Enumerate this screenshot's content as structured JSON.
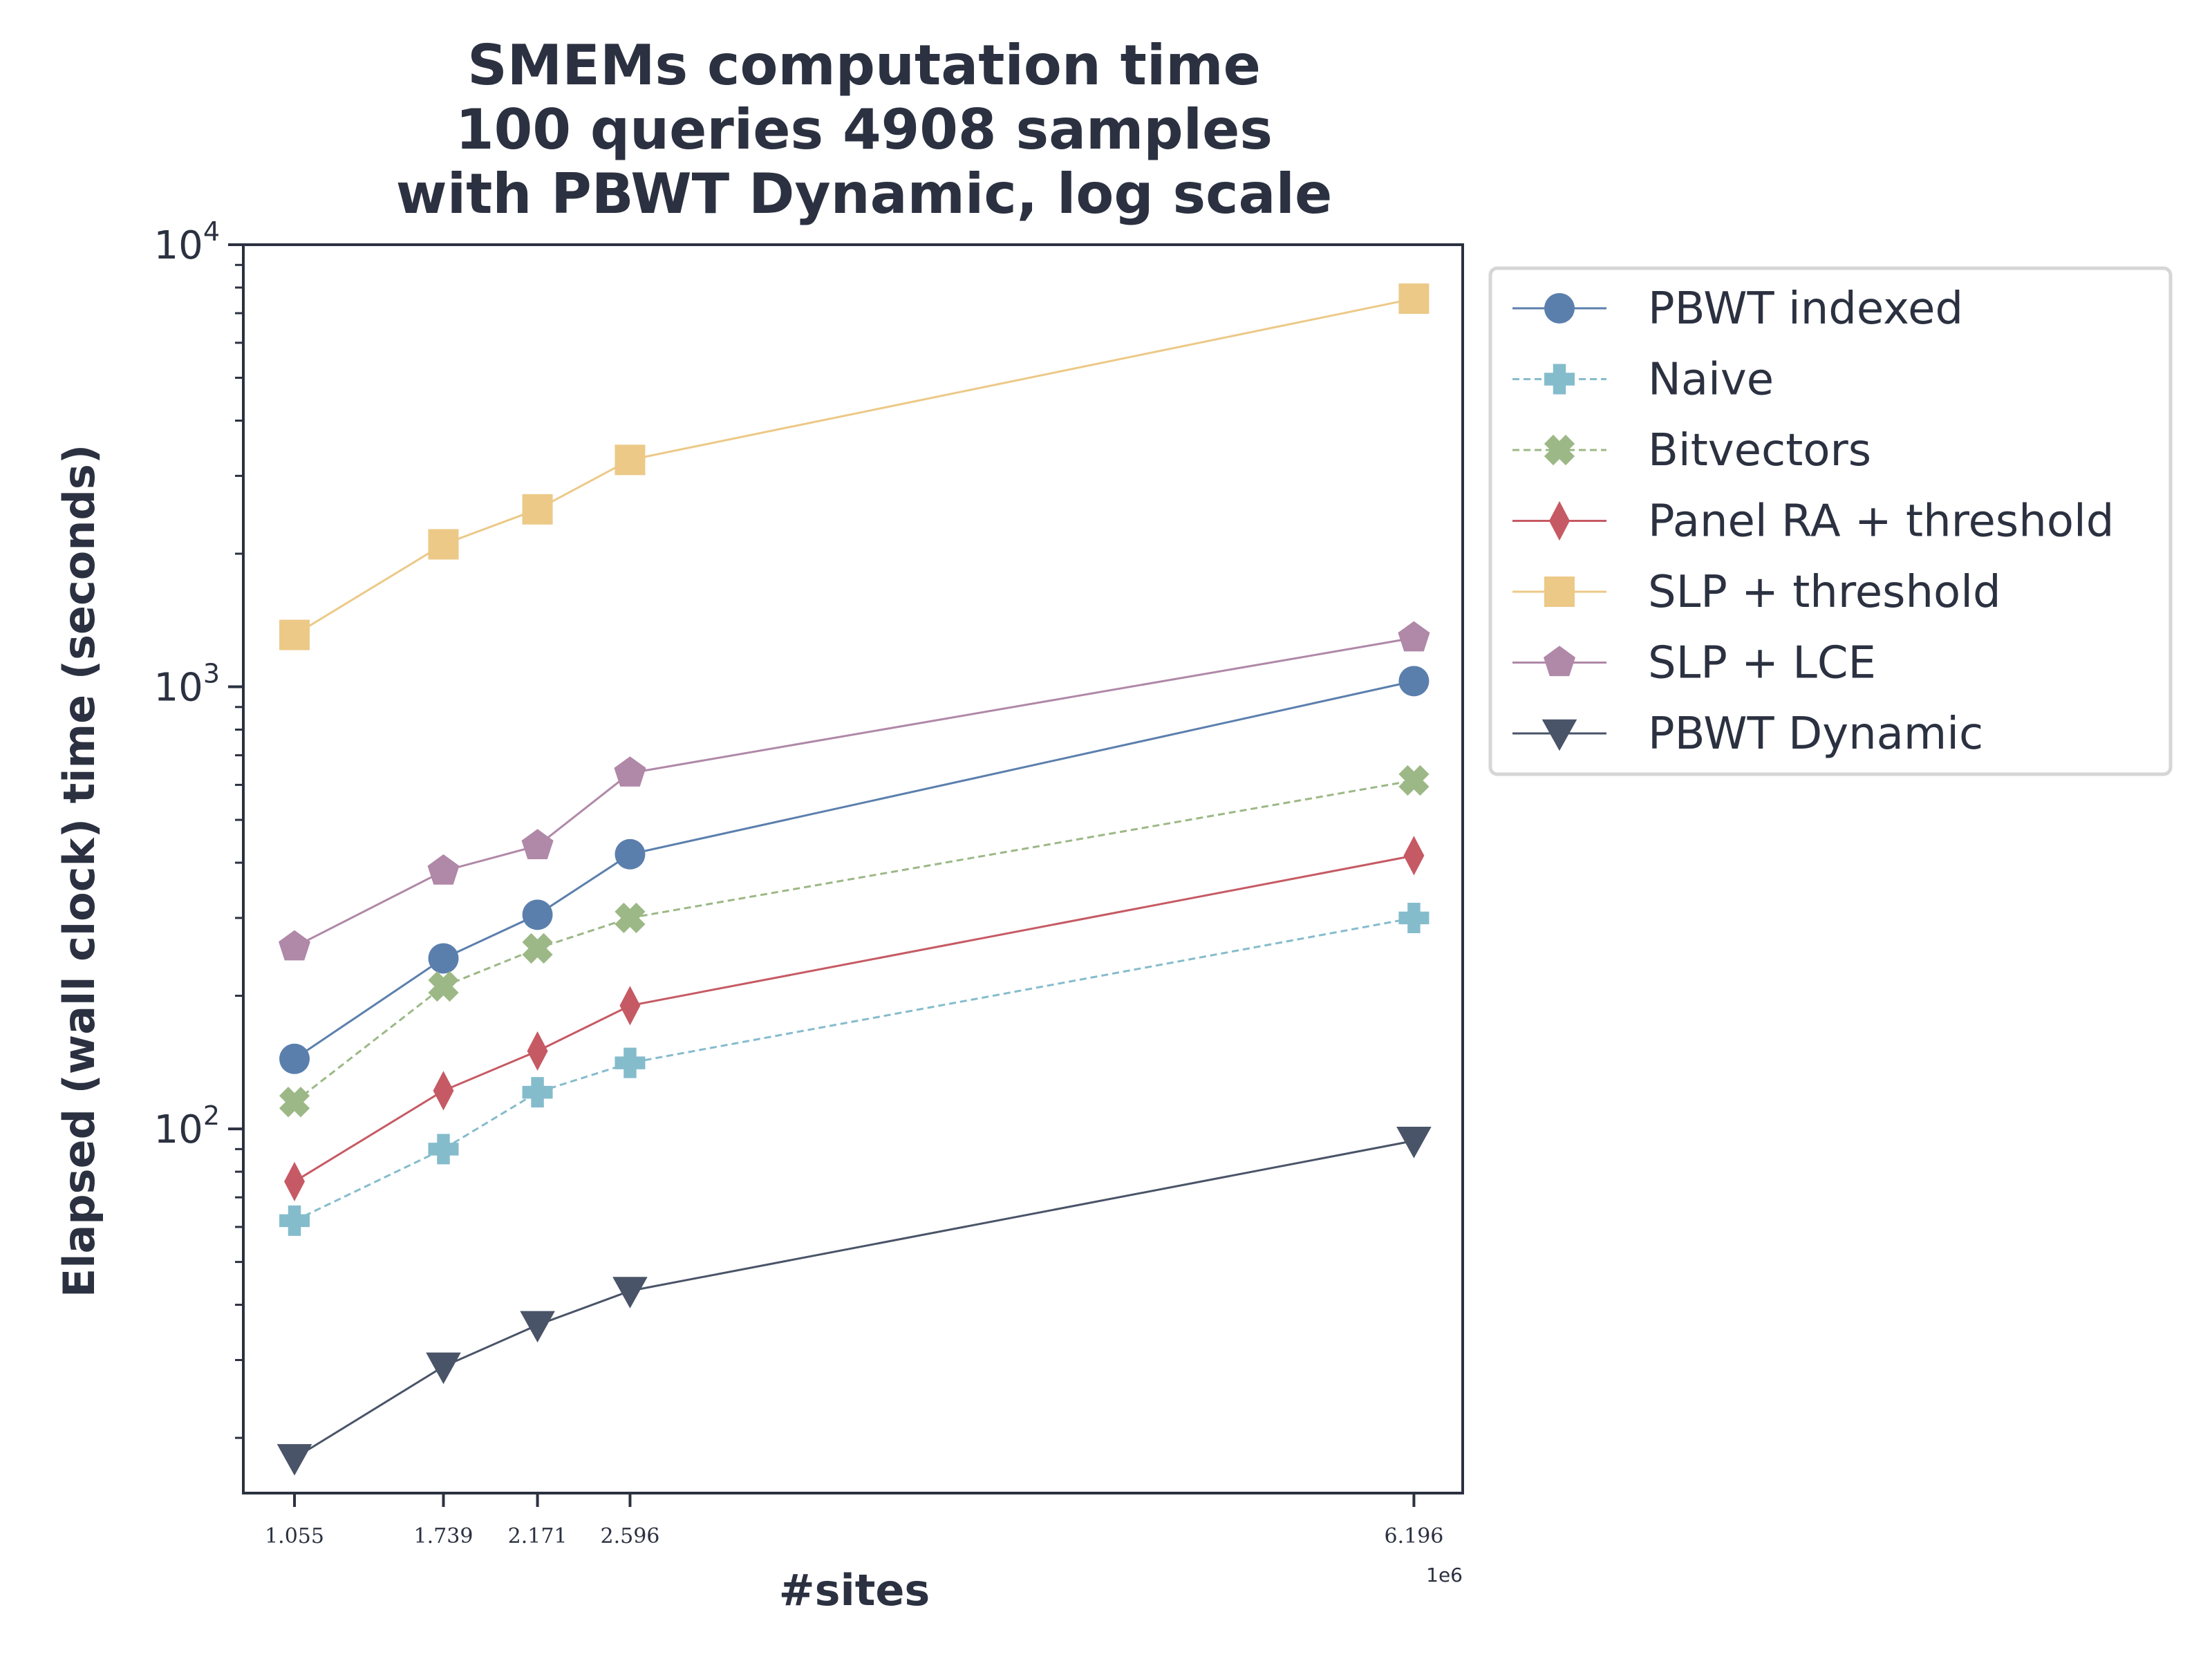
{
  "chart_data": {
    "type": "line",
    "title_lines": [
      "SMEMs computation time",
      "100 queries 4908 samples",
      "with PBWT Dynamic, log scale"
    ],
    "xlabel": "#sites",
    "ylabel": "Elapsed (wall clock) time (seconds)",
    "x_offset_label": "1e6",
    "yscale": "log",
    "ylim": [
      15,
      10000
    ],
    "xlim": [
      0.82,
      6.42
    ],
    "x": [
      1.055,
      1.739,
      2.171,
      2.596,
      6.196
    ],
    "x_tick_labels": [
      "1.055",
      "1.739",
      "2.171",
      "2.596",
      "6.196"
    ],
    "y_ticks": [
      {
        "value": 100,
        "base": "10",
        "exp": "2"
      },
      {
        "value": 1000,
        "base": "10",
        "exp": "3"
      },
      {
        "value": 10000,
        "base": "10",
        "exp": "4"
      }
    ],
    "grid": false,
    "legend_position": "outside right, top",
    "series": [
      {
        "name": "PBWT indexed",
        "values": [
          144,
          243,
          305,
          418,
          1030
        ],
        "color": "#5b7fad",
        "marker": "circle",
        "dash": "solid"
      },
      {
        "name": "Naive",
        "values": [
          62,
          90,
          121,
          141,
          300
        ],
        "color": "#85bccc",
        "marker": "plus",
        "dash": "dashed"
      },
      {
        "name": "Bitvectors",
        "values": [
          115,
          210,
          256,
          300,
          614
        ],
        "color": "#9cb886",
        "marker": "x",
        "dash": "dashed"
      },
      {
        "name": "Panel RA + threshold",
        "values": [
          76,
          122,
          150,
          190,
          415
        ],
        "color": "#c65a64",
        "marker": "diamond",
        "dash": "solid"
      },
      {
        "name": "SLP + threshold",
        "values": [
          1310,
          2100,
          2520,
          3260,
          7550
        ],
        "color": "#ecc987",
        "marker": "square",
        "dash": "solid"
      },
      {
        "name": "SLP + LCE",
        "values": [
          258,
          383,
          437,
          638,
          1290
        ],
        "color": "#b088a8",
        "marker": "pentagon",
        "dash": "solid"
      },
      {
        "name": "PBWT Dynamic",
        "values": [
          18,
          29,
          36,
          43,
          94
        ],
        "color": "#4a5468",
        "marker": "triangle-down",
        "dash": "solid"
      }
    ]
  }
}
